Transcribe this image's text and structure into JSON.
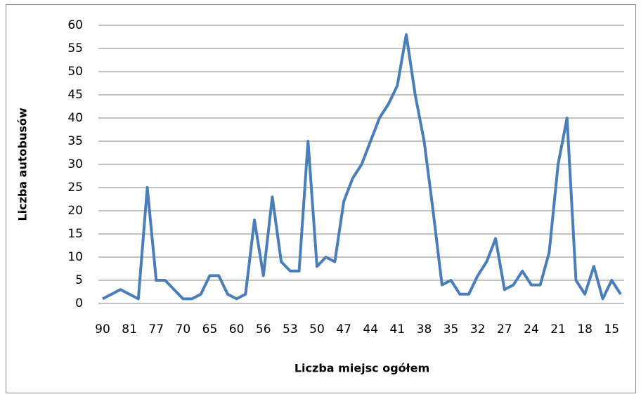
{
  "chart_data": {
    "type": "line",
    "xlabel": "Liczba miejsc ogółem",
    "ylabel": "Liczba autobusów",
    "categories": [
      "90",
      null,
      null,
      "81",
      null,
      null,
      "77",
      null,
      null,
      "70",
      null,
      null,
      "65",
      null,
      null,
      "60",
      null,
      null,
      "56",
      null,
      null,
      "53",
      null,
      null,
      "50",
      null,
      null,
      "47",
      null,
      null,
      "44",
      null,
      null,
      "41",
      null,
      null,
      "38",
      null,
      null,
      "35",
      null,
      null,
      "32",
      null,
      null,
      "27",
      null,
      null,
      "24",
      null,
      null,
      "21",
      null,
      null,
      "18",
      null,
      null,
      "15",
      null
    ],
    "series": [
      {
        "name": "Liczba autobusów",
        "color": "#4a7ebb",
        "values": [
          1,
          2,
          3,
          2,
          1,
          25,
          5,
          5,
          3,
          1,
          1,
          2,
          6,
          6,
          2,
          1,
          2,
          18,
          6,
          23,
          9,
          7,
          7,
          35,
          8,
          10,
          9,
          22,
          27,
          30,
          35,
          40,
          43,
          47,
          58,
          45,
          35,
          20,
          4,
          5,
          2,
          2,
          6,
          9,
          14,
          3,
          4,
          7,
          4,
          4,
          11,
          30,
          40,
          5,
          2,
          8,
          1,
          5,
          2
        ]
      }
    ],
    "ylim": [
      0,
      60
    ],
    "yticks": [
      0,
      5,
      10,
      15,
      20,
      25,
      30,
      35,
      40,
      45,
      50,
      55,
      60
    ],
    "grid": true
  }
}
